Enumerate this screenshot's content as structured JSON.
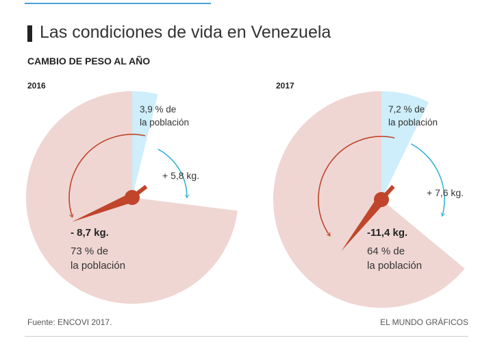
{
  "header": {
    "title": "Las condiciones de vida en Venezuela",
    "subtitle": "CAMBIO DE PESO AL AÑO"
  },
  "footer": {
    "source": "Fuente: ENCOVI 2017.",
    "credit": "EL MUNDO GRÁFICOS"
  },
  "colors": {
    "loss_fill": "#efd6d3",
    "gain_fill": "#cdeefa",
    "loss_accent": "#c0452b",
    "gain_accent": "#33b3d6",
    "rule": "#4a9fd6"
  },
  "chart_data": [
    {
      "type": "pie",
      "year": "2016",
      "slices": [
        {
          "label": "- 8,7 kg.",
          "share_label": "73 % de",
          "share_label_2": "la población",
          "percent": 73,
          "change_kg": -8.7
        },
        {
          "label": "+ 5,8 kg.",
          "share_label": "3,9 % de",
          "share_label_2": "la población",
          "percent": 3.9,
          "change_kg": 5.8
        }
      ]
    },
    {
      "type": "pie",
      "year": "2017",
      "slices": [
        {
          "label": "-11,4 kg.",
          "share_label": "64 % de",
          "share_label_2": "la población",
          "percent": 64,
          "change_kg": -11.4
        },
        {
          "label": "+ 7,6 kg.",
          "share_label": "7,2 % de",
          "share_label_2": "la población",
          "percent": 7.2,
          "change_kg": 7.6
        }
      ]
    }
  ]
}
